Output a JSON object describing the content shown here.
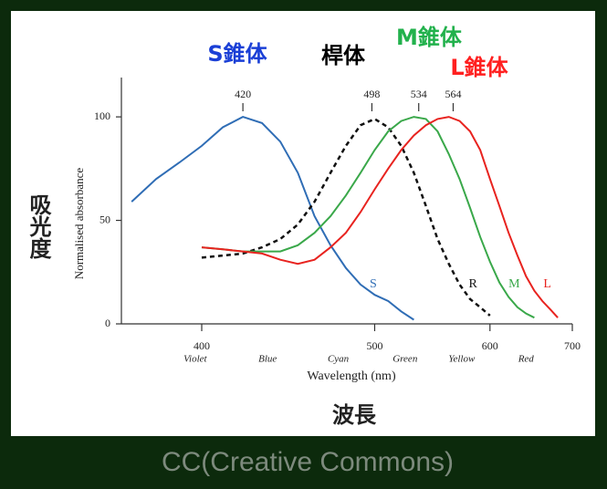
{
  "chart_data": {
    "type": "line",
    "annotations": [
      {
        "text": "S錐体",
        "color": "#1a3fd6"
      },
      {
        "text": "桿体",
        "color": "#000000"
      },
      {
        "text": "M錐体",
        "color": "#22b14c"
      },
      {
        "text": "L錐体",
        "color": "#ff2020"
      }
    ],
    "ylabel_outer": "吸光度",
    "xlabel_outer": "波長",
    "ylabel": "Normalised absorbance",
    "xlabel": "Wavelength (nm)",
    "caption": "CC(Creative Commons)",
    "xscale": "reciprocal",
    "xlim": [
      366,
      700
    ],
    "xticks": [
      400,
      500,
      600,
      700
    ],
    "ylim": [
      0,
      119
    ],
    "yticks": [
      0,
      50,
      100
    ],
    "peaks": [
      420,
      498,
      534,
      564
    ],
    "band_labels": [
      {
        "label": "Violet",
        "x": 397
      },
      {
        "label": "Blue",
        "x": 433
      },
      {
        "label": "Cyan",
        "x": 475
      },
      {
        "label": "Green",
        "x": 523
      },
      {
        "label": "Yellow",
        "x": 572
      },
      {
        "label": "Red",
        "x": 640
      }
    ],
    "x": [
      370,
      380,
      390,
      400,
      410,
      420,
      430,
      440,
      450,
      460,
      470,
      480,
      490,
      500,
      510,
      520,
      530,
      540,
      550,
      560,
      570,
      580,
      590,
      600,
      610,
      620,
      630,
      640,
      650,
      660,
      670,
      680,
      690
    ],
    "series": [
      {
        "name": "S",
        "color": "#2f6db5",
        "dashed": false,
        "values": [
          59,
          70,
          78,
          86,
          95,
          100,
          97,
          88,
          73,
          52,
          38,
          27,
          19,
          14,
          11,
          6,
          2,
          null,
          null,
          null,
          null,
          null,
          null,
          null,
          null,
          null,
          null,
          null,
          null,
          null,
          null,
          null,
          null
        ]
      },
      {
        "name": "R",
        "color": "#111111",
        "dashed": true,
        "values": [
          null,
          null,
          null,
          32,
          33,
          34,
          37,
          41,
          48,
          59,
          73,
          86,
          96,
          99,
          95,
          86,
          73,
          57,
          41,
          29,
          19,
          12,
          8,
          4,
          null,
          null,
          null,
          null,
          null,
          null,
          null,
          null,
          null
        ]
      },
      {
        "name": "M",
        "color": "#3aa84a",
        "dashed": false,
        "values": [
          null,
          null,
          null,
          37,
          36,
          35,
          35,
          35,
          38,
          44,
          52,
          62,
          73,
          84,
          93,
          98,
          100,
          99,
          93,
          82,
          70,
          56,
          42,
          30,
          20,
          13,
          8,
          5,
          3,
          null,
          null,
          null,
          null
        ]
      },
      {
        "name": "L",
        "color": "#e8231f",
        "dashed": false,
        "values": [
          null,
          null,
          null,
          37,
          36,
          35,
          34,
          31,
          29,
          31,
          37,
          44,
          54,
          65,
          75,
          84,
          91,
          96,
          99,
          100,
          98,
          93,
          84,
          70,
          57,
          44,
          33,
          23,
          16,
          11,
          7,
          3,
          null
        ]
      }
    ]
  }
}
